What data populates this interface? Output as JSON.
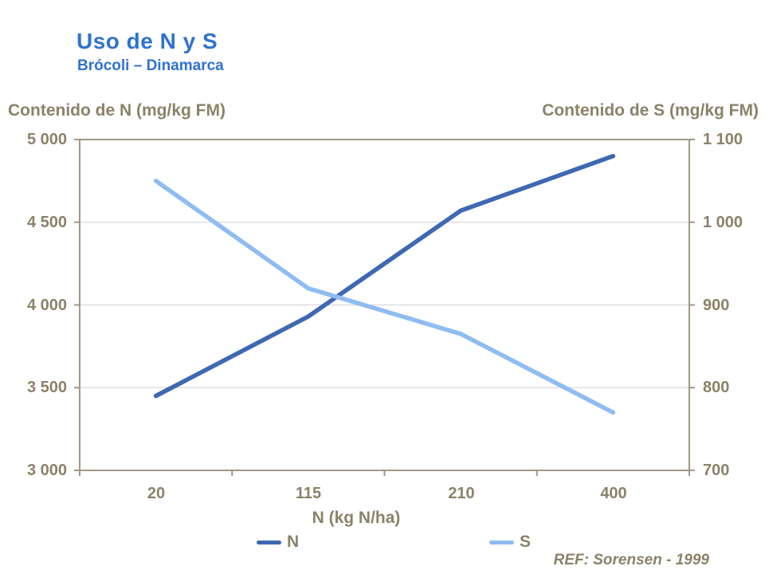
{
  "header": {
    "title": "Uso de N y S",
    "subtitle": "Brócoli – Dinamarca"
  },
  "left_axis": {
    "title": "Contenido de N (mg/kg FM)",
    "tick_labels": [
      "5 000",
      "4 500",
      "4 000",
      "3 500",
      "3 000"
    ]
  },
  "right_axis": {
    "title": "Contenido de S (mg/kg FM)",
    "tick_labels": [
      "1 100",
      "1 000",
      "900",
      "800",
      "700"
    ]
  },
  "x_axis": {
    "title": "N (kg N/ha)",
    "category_labels": [
      "20",
      "115",
      "210",
      "400"
    ]
  },
  "legend": {
    "items": [
      {
        "label": "N",
        "color": "#3E68B2"
      },
      {
        "label": "S",
        "color": "#8FBCF2"
      }
    ]
  },
  "footer": {
    "reference": "REF: Sorensen - 1999"
  },
  "colors": {
    "title_blue": "#2F72D0",
    "axis_text_taupe": "#8B8269",
    "gridline_gray": "#D9D9D9",
    "axis_line": "#A09884",
    "n_line_dark_blue": "#3E68B2",
    "s_line_light_blue": "#8FBCF2"
  },
  "chart_data": {
    "type": "line",
    "title": "Uso de N y S",
    "subtitle": "Brócoli – Dinamarca",
    "xlabel": "N (kg N/ha)",
    "x_type": "category",
    "categories": [
      20,
      115,
      210,
      400
    ],
    "series": [
      {
        "name": "N",
        "axis": "left",
        "color": "#3E68B2",
        "values": [
          3450,
          3930,
          4570,
          4900
        ]
      },
      {
        "name": "S",
        "axis": "right",
        "color": "#8FBCF2",
        "values": [
          1050,
          920,
          865,
          770
        ]
      }
    ],
    "left_axis": {
      "label": "Contenido de N (mg/kg FM)",
      "ylim": [
        3000,
        5000
      ],
      "ticks": [
        5000,
        4500,
        4000,
        3500,
        3000
      ]
    },
    "right_axis": {
      "label": "Contenido de S (mg/kg FM)",
      "ylim": [
        700,
        1100
      ],
      "ticks": [
        1100,
        1000,
        900,
        800,
        700
      ]
    },
    "grid": "horizontal",
    "legend_position": "bottom",
    "annotation": "REF: Sorensen - 1999"
  }
}
